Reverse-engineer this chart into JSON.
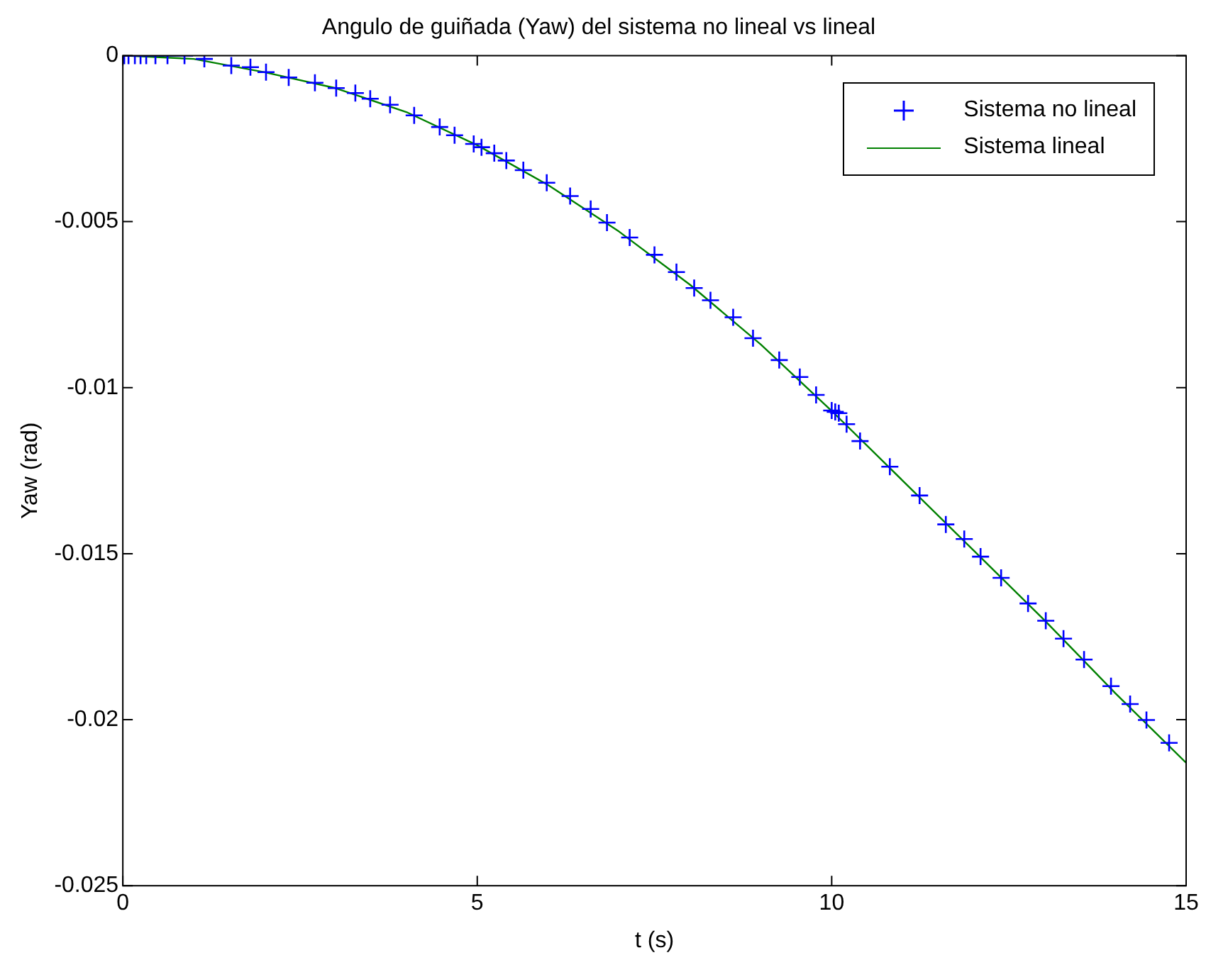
{
  "chart_data": {
    "type": "scatter",
    "title": "Angulo de guiñada (Yaw) del sistema no lineal vs lineal",
    "xlabel": "t (s)",
    "ylabel": "Yaw (rad)",
    "xlim": [
      0,
      15
    ],
    "xticks": [
      0,
      5,
      10,
      15
    ],
    "ylim": [
      -0.025,
      0
    ],
    "yticks": [
      -0.025,
      -0.02,
      -0.015,
      -0.01,
      -0.005,
      0
    ],
    "grid": false,
    "legend": "top right",
    "series": [
      {
        "name": "Sistema no lineal",
        "marker": "cross",
        "color": "#0000ff",
        "x": [
          0.02,
          0.08,
          0.17,
          0.25,
          0.33,
          0.46,
          0.63,
          0.87,
          1.15,
          1.53,
          1.8,
          2.02,
          2.34,
          2.71,
          3.01,
          3.28,
          3.49,
          3.77,
          4.11,
          4.47,
          4.68,
          4.95,
          5.06,
          5.24,
          5.41,
          5.65,
          5.98,
          6.31,
          6.6,
          6.83,
          7.15,
          7.5,
          7.81,
          8.06,
          8.29,
          8.61,
          8.89,
          9.26,
          9.55,
          9.78,
          10.0,
          10.05,
          10.1,
          10.21,
          10.4,
          10.82,
          11.24,
          11.61,
          11.87,
          12.1,
          12.39,
          12.77,
          13.02,
          13.27,
          13.56,
          13.94,
          14.21,
          14.44,
          14.76
        ],
        "values": [
          0,
          0,
          0,
          0,
          0,
          0,
          0,
          0,
          -0.0001,
          -0.0003,
          -0.00035,
          -0.0005,
          -0.00066,
          -0.00082,
          -0.00098,
          -0.00113,
          -0.0013,
          -0.00148,
          -0.0018,
          -0.00215,
          -0.0024,
          -0.00266,
          -0.00276,
          -0.00294,
          -0.00316,
          -0.00345,
          -0.00383,
          -0.00423,
          -0.00462,
          -0.00503,
          -0.00548,
          -0.006,
          -0.00652,
          -0.007,
          -0.00737,
          -0.00788,
          -0.00851,
          -0.00917,
          -0.00968,
          -0.01022,
          -0.01069,
          -0.01073,
          -0.01077,
          -0.0111,
          -0.01161,
          -0.01238,
          -0.01325,
          -0.01412,
          -0.01456,
          -0.01509,
          -0.01573,
          -0.0165,
          -0.01702,
          -0.01756,
          -0.01819,
          -0.01899,
          -0.01953,
          -0.02001,
          -0.0207
        ]
      },
      {
        "name": "Sistema lineal",
        "type": "line",
        "marker": "none",
        "line_style": "solid",
        "color": "#008000",
        "x": [
          0,
          1,
          2,
          3,
          4,
          5,
          6,
          7,
          8,
          9,
          10,
          11,
          12,
          13,
          14,
          15
        ],
        "values": [
          0,
          -0.0001,
          -0.0005,
          -0.00098,
          -0.0017,
          -0.0027,
          -0.0039,
          -0.0053,
          -0.0069,
          -0.0087,
          -0.0107,
          -0.0128,
          -0.0149,
          -0.017,
          -0.0192,
          -0.0213
        ]
      }
    ]
  }
}
